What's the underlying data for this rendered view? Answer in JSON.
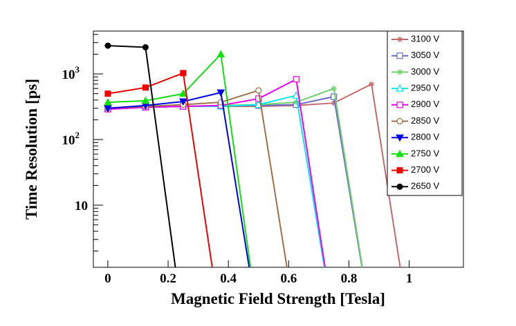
{
  "chart_data": {
    "type": "line",
    "x_label": "Magnetic Field Strength [Tesla]",
    "y_label": "Time Resolution [ps]",
    "xlim": [
      -0.048,
      1.18
    ],
    "ylim": [
      1.13,
      4500
    ],
    "log_y": true,
    "xticks": [
      0,
      0.2,
      0.4,
      0.6,
      0.8,
      1
    ],
    "yticks": [
      {
        "value": 10,
        "label": "10"
      },
      {
        "value": 100,
        "label": "10",
        "exponent": "2"
      },
      {
        "value": 1000,
        "label": "10",
        "exponent": "3"
      }
    ],
    "series": [
      {
        "name": "3100 V",
        "color": "#c46a6a",
        "marker": "star",
        "x": [
          0,
          0.125,
          0.25,
          0.375,
          0.5,
          0.625,
          0.75,
          0.875,
          1.0
        ],
        "values": [
          300,
          310,
          320,
          320,
          320,
          330,
          360,
          700,
          0.15
        ]
      },
      {
        "name": "3050 V",
        "color": "#6a6ac8",
        "marker": "open-square",
        "x": [
          0,
          0.125,
          0.25,
          0.375,
          0.5,
          0.625,
          0.75,
          0.875
        ],
        "values": [
          290,
          310,
          320,
          330,
          330,
          340,
          450,
          0.15
        ]
      },
      {
        "name": "3000 V",
        "color": "#6cd06c",
        "marker": "star",
        "x": [
          0,
          0.125,
          0.25,
          0.375,
          0.5,
          0.625,
          0.75,
          0.875
        ],
        "values": [
          300,
          310,
          320,
          330,
          340,
          370,
          600,
          0.15
        ]
      },
      {
        "name": "2950 V",
        "color": "#00e8f0",
        "marker": "open-triangle",
        "x": [
          0,
          0.125,
          0.25,
          0.375,
          0.5,
          0.625,
          0.75
        ],
        "values": [
          300,
          310,
          320,
          320,
          340,
          470,
          0.15
        ]
      },
      {
        "name": "2900 V",
        "color": "#f000f0",
        "marker": "open-square",
        "x": [
          0,
          0.125,
          0.25,
          0.375,
          0.5,
          0.625,
          0.75
        ],
        "values": [
          290,
          310,
          320,
          330,
          420,
          830,
          0.15
        ]
      },
      {
        "name": "2850 V",
        "color": "#a0704a",
        "marker": "open-circle",
        "x": [
          0,
          0.125,
          0.25,
          0.375,
          0.5,
          0.625
        ],
        "values": [
          300,
          320,
          340,
          370,
          560,
          0.15
        ]
      },
      {
        "name": "2800 V",
        "color": "#0000e8",
        "marker": "triangle-down",
        "x": [
          0,
          0.125,
          0.25,
          0.375,
          0.5
        ],
        "values": [
          300,
          330,
          380,
          520,
          0.15
        ]
      },
      {
        "name": "2750 V",
        "color": "#10e010",
        "marker": "triangle",
        "x": [
          0,
          0.125,
          0.25,
          0.375,
          0.5
        ],
        "values": [
          370,
          390,
          500,
          2000,
          0.15
        ]
      },
      {
        "name": "2700 V",
        "color": "#f00000",
        "marker": "square",
        "x": [
          0,
          0.125,
          0.25,
          0.375
        ],
        "values": [
          500,
          620,
          1030,
          0.15
        ]
      },
      {
        "name": "2650 V",
        "color": "#000000",
        "marker": "circle",
        "x": [
          0,
          0.125,
          0.25
        ],
        "values": [
          2700,
          2550,
          0.15
        ]
      }
    ]
  }
}
